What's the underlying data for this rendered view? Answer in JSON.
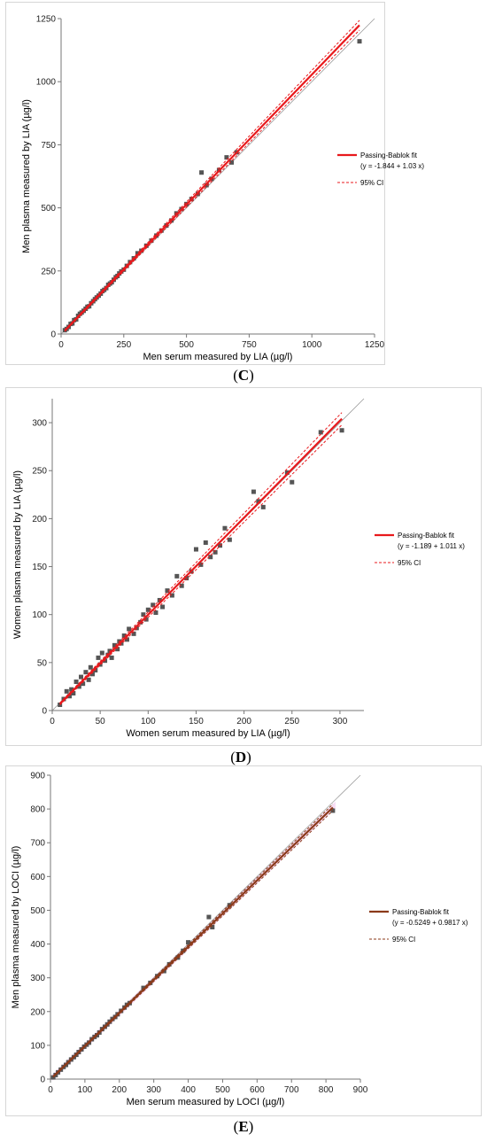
{
  "chart_data": [
    {
      "type": "scatter",
      "panel_label": "C",
      "xlabel": "Men serum measured by LIA (µg/l)",
      "ylabel": "Men plasma measured by LIA (µg/l)",
      "xlim": [
        0,
        1250
      ],
      "ylim": [
        0,
        1250
      ],
      "xticks": [
        0,
        250,
        500,
        750,
        1000,
        1250
      ],
      "yticks": [
        0,
        250,
        500,
        750,
        1000,
        1250
      ],
      "grid": false,
      "legend_position": "right",
      "colors": {
        "points": "#555555",
        "fit": "#e8191c",
        "ci": "#e8191c",
        "identity": "#9a9a9a"
      },
      "fit": {
        "intercept": -1.844,
        "slope": 1.03
      },
      "ci_offset": 12,
      "legend": [
        {
          "label": "Passing-Bablok fit",
          "sublabel": "(y = -1.844 + 1.03 x)",
          "style": "solid"
        },
        {
          "label": "95% CI",
          "style": "dashed"
        }
      ],
      "x": [
        15,
        22,
        30,
        38,
        45,
        52,
        60,
        68,
        75,
        82,
        90,
        98,
        105,
        112,
        120,
        128,
        135,
        142,
        150,
        158,
        165,
        172,
        180,
        188,
        195,
        202,
        210,
        218,
        225,
        232,
        240,
        250,
        262,
        275,
        290,
        305,
        320,
        340,
        360,
        380,
        400,
        420,
        440,
        460,
        480,
        500,
        520,
        545,
        560,
        580,
        600,
        630,
        660,
        680,
        700,
        1190
      ],
      "y": [
        15,
        20,
        28,
        40,
        42,
        55,
        58,
        72,
        80,
        85,
        92,
        100,
        108,
        110,
        122,
        130,
        138,
        145,
        152,
        160,
        170,
        175,
        182,
        195,
        200,
        205,
        215,
        225,
        230,
        240,
        248,
        255,
        270,
        285,
        300,
        320,
        330,
        350,
        370,
        390,
        410,
        430,
        450,
        478,
        495,
        515,
        535,
        555,
        640,
        590,
        615,
        650,
        700,
        680,
        720,
        1160
      ]
    },
    {
      "type": "scatter",
      "panel_label": "D",
      "xlabel": "Women serum measured by LIA (µg/l)",
      "ylabel": "Women plasma measured by LIA (µg/l)",
      "xlim": [
        0,
        325
      ],
      "ylim": [
        0,
        325
      ],
      "xticks": [
        0,
        50,
        100,
        150,
        200,
        250,
        300
      ],
      "yticks": [
        0,
        50,
        100,
        150,
        200,
        250,
        300
      ],
      "grid": false,
      "legend_position": "right",
      "colors": {
        "points": "#555555",
        "fit": "#e8191c",
        "ci": "#e8191c",
        "identity": "#9a9a9a"
      },
      "fit": {
        "intercept": -1.189,
        "slope": 1.011
      },
      "ci_offset": 4,
      "legend": [
        {
          "label": "Passing-Bablok fit",
          "sublabel": "(y = -1.189 + 1.011 x)",
          "style": "solid"
        },
        {
          "label": "95% CI",
          "style": "dashed"
        }
      ],
      "x": [
        8,
        12,
        15,
        18,
        20,
        22,
        25,
        28,
        30,
        32,
        35,
        38,
        40,
        42,
        45,
        48,
        50,
        52,
        55,
        58,
        60,
        62,
        65,
        68,
        70,
        72,
        75,
        78,
        80,
        85,
        88,
        92,
        95,
        98,
        100,
        105,
        108,
        112,
        115,
        120,
        125,
        130,
        135,
        140,
        145,
        150,
        155,
        160,
        165,
        170,
        175,
        180,
        185,
        210,
        215,
        220,
        245,
        250,
        280,
        302
      ],
      "y": [
        6,
        12,
        20,
        15,
        22,
        18,
        30,
        25,
        35,
        28,
        40,
        32,
        45,
        38,
        42,
        55,
        48,
        60,
        52,
        58,
        62,
        55,
        68,
        64,
        72,
        70,
        78,
        74,
        85,
        80,
        86,
        92,
        100,
        95,
        105,
        110,
        102,
        115,
        108,
        125,
        120,
        140,
        130,
        138,
        145,
        168,
        152,
        175,
        160,
        165,
        172,
        190,
        178,
        228,
        218,
        212,
        248,
        238,
        290,
        292
      ]
    },
    {
      "type": "scatter",
      "panel_label": "E",
      "xlabel": "Men serum measured by LOCI (µg/l)",
      "ylabel": "Men plasma measured by LOCI (µg/l)",
      "xlim": [
        0,
        900
      ],
      "ylim": [
        0,
        900
      ],
      "xticks": [
        0,
        100,
        200,
        300,
        400,
        500,
        600,
        700,
        800,
        900
      ],
      "yticks": [
        0,
        100,
        200,
        300,
        400,
        500,
        600,
        700,
        800,
        900
      ],
      "grid": false,
      "legend_position": "right",
      "colors": {
        "points": "#555555",
        "fit": "#8b3a1a",
        "ci": "#8b3a1a",
        "identity": "#9a9a9a",
        "ci_band": "#f4c6ef"
      },
      "fit": {
        "intercept": -0.5249,
        "slope": 0.9817
      },
      "ci_offset": 6,
      "legend": [
        {
          "label": "Passing-Bablok fit",
          "sublabel": "(y = -0.5249 + 0.9817 x)",
          "style": "solid"
        },
        {
          "label": "95% CI",
          "style": "dashed"
        }
      ],
      "x": [
        8,
        15,
        22,
        30,
        38,
        45,
        52,
        60,
        68,
        75,
        82,
        90,
        98,
        105,
        112,
        120,
        128,
        135,
        142,
        150,
        158,
        165,
        172,
        180,
        188,
        195,
        205,
        215,
        222,
        230,
        270,
        290,
        310,
        330,
        345,
        370,
        385,
        400,
        460,
        470,
        520,
        820
      ],
      "y": [
        5,
        12,
        20,
        28,
        36,
        42,
        50,
        58,
        65,
        72,
        80,
        88,
        96,
        102,
        108,
        118,
        125,
        130,
        138,
        148,
        155,
        162,
        170,
        178,
        184,
        192,
        202,
        212,
        220,
        225,
        270,
        285,
        305,
        320,
        340,
        360,
        380,
        405,
        480,
        450,
        515,
        795
      ]
    }
  ]
}
